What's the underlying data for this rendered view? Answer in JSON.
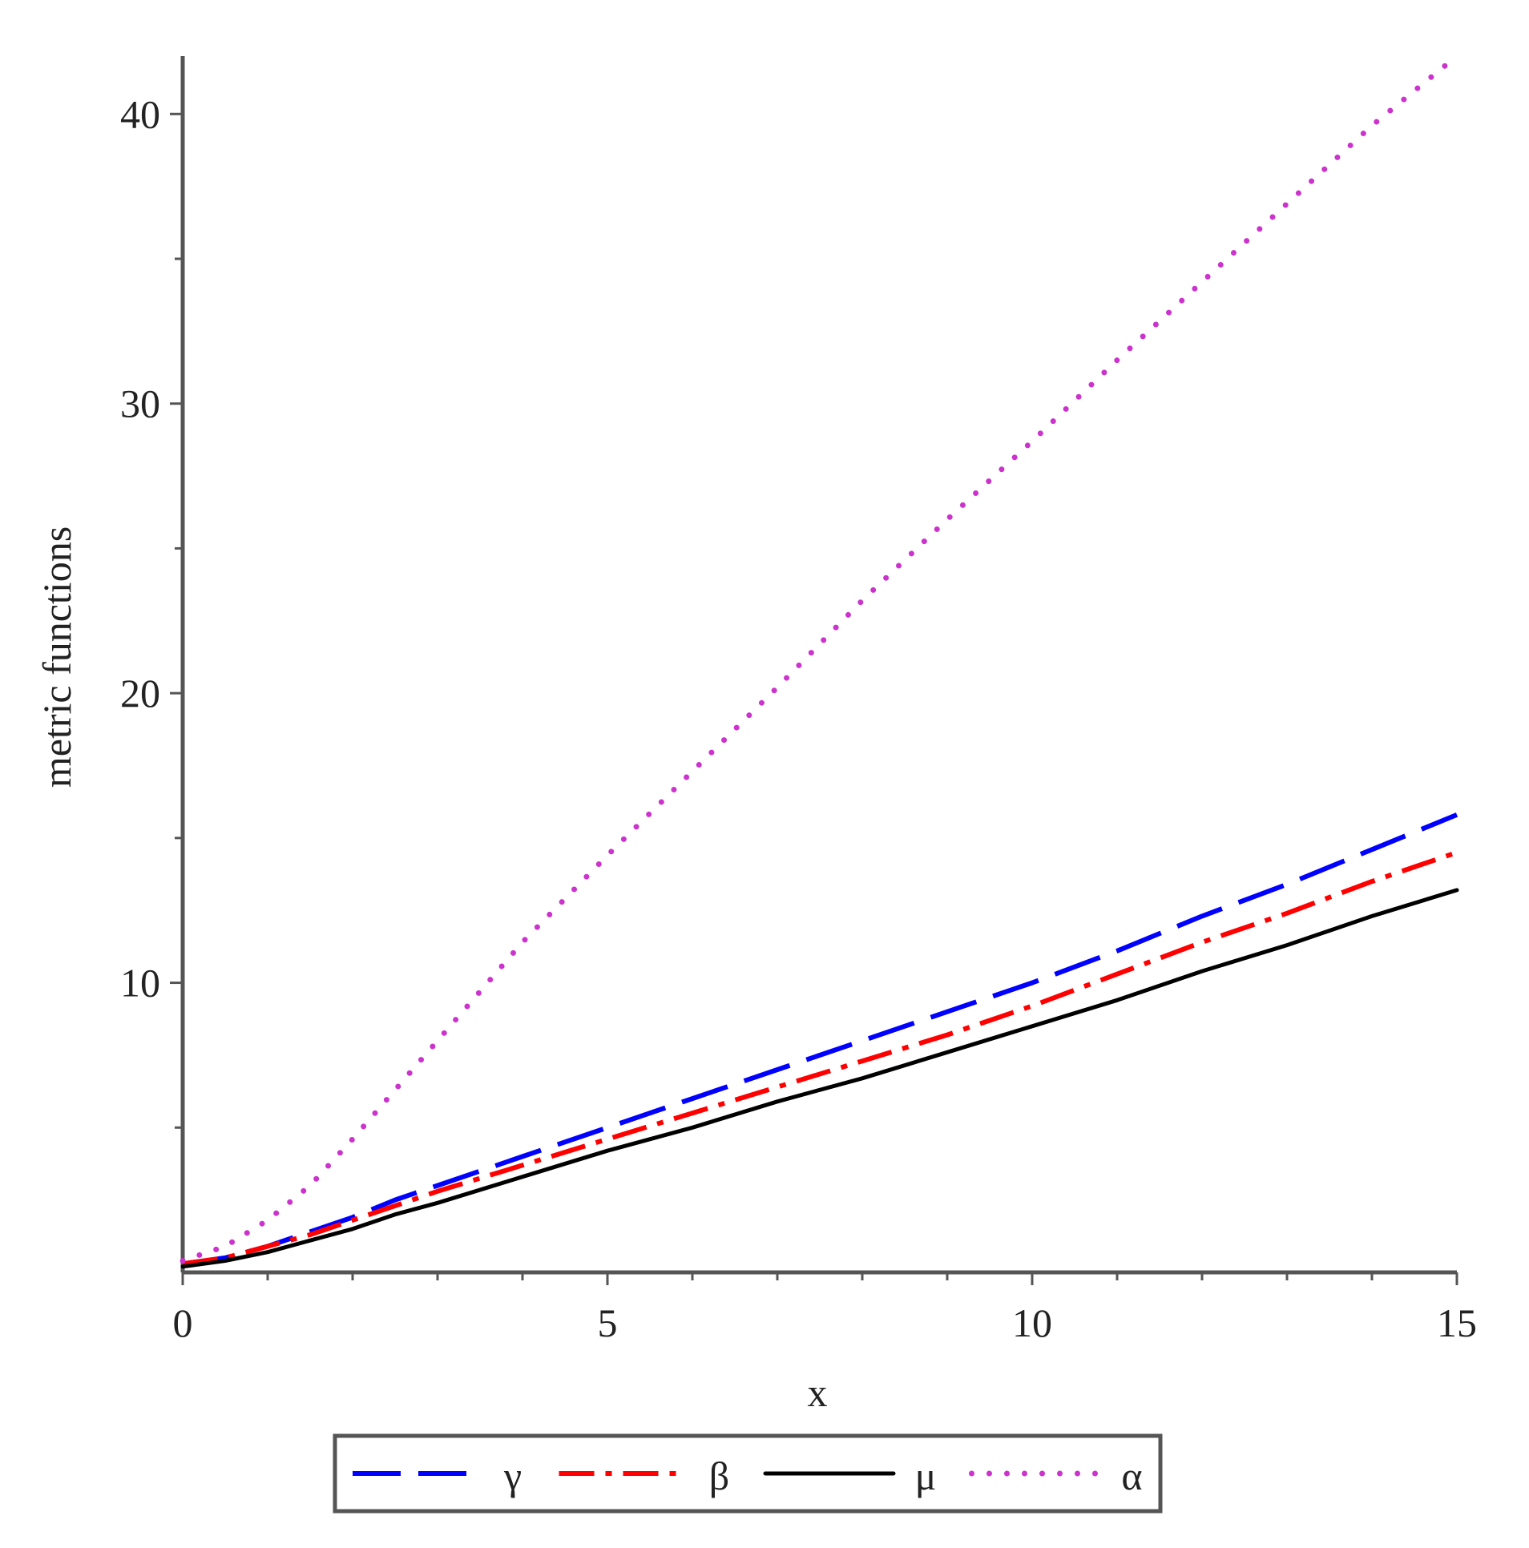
{
  "chart_data": {
    "type": "line",
    "title": "",
    "xlabel": "x",
    "ylabel": "metric functions",
    "xlim": [
      0,
      15
    ],
    "ylim": [
      0,
      42
    ],
    "x_ticks": [
      0,
      5,
      10,
      15
    ],
    "y_ticks": [
      10,
      20,
      30,
      40
    ],
    "x_minor_step": 1,
    "y_minor_step": 5,
    "grid": false,
    "legend_position": "bottom",
    "series": [
      {
        "name": "γ",
        "color": "#0000ff",
        "style": "dashed",
        "x": [
          0,
          0.5,
          1,
          1.5,
          2,
          2.5,
          3,
          4,
          5,
          6,
          7,
          8,
          9,
          10,
          11,
          12,
          13,
          14,
          15
        ],
        "y": [
          0.3,
          0.5,
          0.9,
          1.4,
          1.9,
          2.5,
          3.0,
          4.0,
          5.0,
          6.0,
          7.0,
          8.0,
          9.0,
          10.0,
          11.1,
          12.3,
          13.4,
          14.6,
          15.8
        ]
      },
      {
        "name": "β",
        "color": "#ff0000",
        "style": "dashdot",
        "x": [
          0,
          0.5,
          1,
          1.5,
          2,
          2.5,
          3,
          4,
          5,
          6,
          7,
          8,
          9,
          10,
          11,
          12,
          13,
          14,
          15
        ],
        "y": [
          0.3,
          0.5,
          0.9,
          1.3,
          1.8,
          2.3,
          2.8,
          3.7,
          4.6,
          5.5,
          6.4,
          7.3,
          8.2,
          9.2,
          10.3,
          11.4,
          12.4,
          13.5,
          14.5
        ]
      },
      {
        "name": "μ",
        "color": "#000000",
        "style": "solid",
        "x": [
          0,
          0.5,
          1,
          1.5,
          2,
          2.5,
          3,
          4,
          5,
          6,
          7,
          8,
          9,
          10,
          11,
          12,
          13,
          14,
          15
        ],
        "y": [
          0.2,
          0.4,
          0.7,
          1.1,
          1.5,
          2.0,
          2.4,
          3.3,
          4.2,
          5.0,
          5.9,
          6.7,
          7.6,
          8.5,
          9.4,
          10.4,
          11.3,
          12.3,
          13.2
        ]
      },
      {
        "name": "α",
        "color": "#cc33cc",
        "style": "dotted",
        "x": [
          0,
          0.5,
          1,
          1.5,
          2,
          3,
          4,
          5,
          6,
          7,
          8,
          9,
          10,
          11,
          12,
          13,
          14,
          15
        ],
        "y": [
          0.4,
          0.9,
          1.8,
          3.0,
          4.6,
          8.0,
          11.4,
          14.4,
          17.3,
          20.2,
          23.2,
          26.0,
          28.7,
          31.5,
          34.2,
          36.9,
          39.6,
          42.0
        ]
      }
    ]
  }
}
